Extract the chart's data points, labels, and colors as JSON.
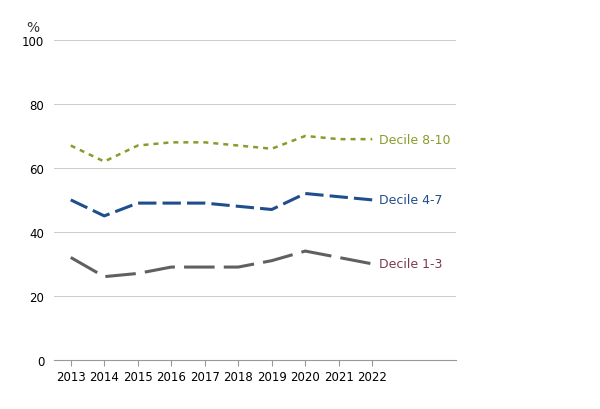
{
  "years": [
    2013,
    2014,
    2015,
    2016,
    2017,
    2018,
    2019,
    2020,
    2021,
    2022
  ],
  "decile_8_10": [
    67,
    62,
    67,
    68,
    68,
    67,
    66,
    70,
    69,
    69
  ],
  "decile_4_7": [
    50,
    45,
    49,
    49,
    49,
    48,
    47,
    52,
    51,
    50
  ],
  "decile_1_3": [
    32,
    26,
    27,
    29,
    29,
    29,
    31,
    34,
    32,
    30
  ],
  "decile_8_10_color": "#8B9A2A",
  "decile_4_7_color": "#1F4E8C",
  "decile_1_3_color": "#606060",
  "decile_8_10_label": "Decile 8-10",
  "decile_4_7_label": "Decile 4-7",
  "decile_1_3_label": "Decile 1-3",
  "decile_1_3_label_color": "#7B3B4E",
  "percent_label": "%",
  "ylim": [
    0,
    100
  ],
  "yticks": [
    0,
    20,
    40,
    60,
    80,
    100
  ],
  "background_color": "#ffffff",
  "grid_color": "#cccccc",
  "label_fontsize": 9,
  "tick_fontsize": 8.5
}
